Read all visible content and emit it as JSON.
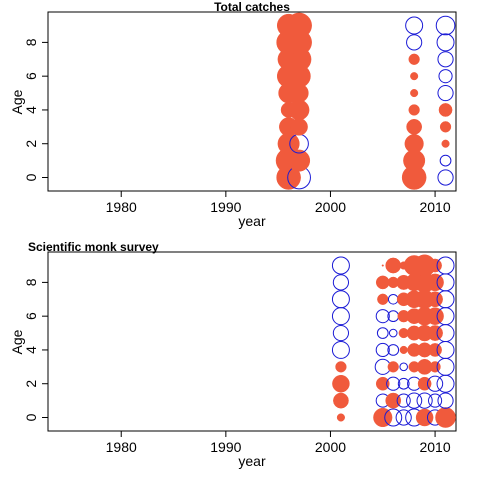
{
  "colors": {
    "positive": "#f05a3c",
    "negative": "#1a1ad6"
  },
  "panels": [
    {
      "title": "Total catches",
      "xlabel": "year",
      "ylabel": "Age"
    },
    {
      "title": "Scientific monk survey",
      "xlabel": "year",
      "ylabel": "Age"
    }
  ],
  "chart_data": [
    {
      "type": "scatter",
      "subtype": "bubble residual plot",
      "title": "Total catches",
      "xlabel": "year",
      "ylabel": "Age",
      "xlim": [
        1973,
        2012
      ],
      "ylim": [
        -0.8,
        9.8
      ],
      "xticks": [
        1980,
        1990,
        2000,
        2010
      ],
      "yticks": [
        0,
        2,
        4,
        6,
        8
      ],
      "grid": false,
      "series": [
        {
          "marker": "filled circle",
          "color": "positive"
        },
        {
          "marker": "open circle",
          "color": "negative"
        }
      ],
      "data": {
        "1996": [
          5.0,
          5.5,
          4.0,
          3.0,
          2.0,
          3.5,
          4.5,
          4.0,
          5.0,
          4.5
        ],
        "1997": [
          -4.5,
          4.0,
          -3.0,
          2.5,
          3.5,
          3.0,
          4.5,
          5.0,
          5.5,
          5.5
        ],
        "2008": [
          5.0,
          4.0,
          3.0,
          2.0,
          1.0,
          0.5,
          0.5,
          1.0,
          -2.0,
          -2.5
        ],
        "2011": [
          -2.0,
          -1.0,
          0.5,
          1.0,
          1.5,
          -2.0,
          -1.5,
          -2.0,
          -2.5,
          -3.0
        ]
      }
    },
    {
      "type": "scatter",
      "subtype": "bubble residual plot",
      "title": "Scientific monk survey",
      "xlabel": "year",
      "ylabel": "Age",
      "xlim": [
        1973,
        2012
      ],
      "ylim": [
        -0.8,
        9.8
      ],
      "xticks": [
        1980,
        1990,
        2000,
        2010
      ],
      "yticks": [
        0,
        2,
        4,
        6,
        8
      ],
      "grid": false,
      "series": [
        {
          "marker": "filled circle",
          "color": "positive"
        },
        {
          "marker": "open circle",
          "color": "negative"
        }
      ],
      "data": {
        "2001": [
          0.5,
          2.0,
          2.5,
          1.0,
          -2.5,
          -2.0,
          -2.5,
          -2.5,
          -2.0,
          -2.5
        ],
        "2005": [
          3.0,
          -1.5,
          1.5,
          -2.0,
          -1.5,
          -1.0,
          -1.5,
          1.0,
          1.5,
          0.0
        ],
        "2006": [
          -2.5,
          2.0,
          -1.5,
          1.0,
          -1.0,
          -0.5,
          -1.0,
          -0.8,
          1.0,
          2.0
        ],
        "2007": [
          -2.0,
          -1.5,
          -1.0,
          -0.5,
          0.5,
          0.8,
          1.2,
          1.5,
          1.8,
          0.5
        ],
        "2008": [
          -2.5,
          -2.0,
          -1.5,
          1.0,
          1.5,
          1.8,
          2.0,
          2.5,
          2.5,
          3.5
        ],
        "2009": [
          2.5,
          -2.0,
          1.5,
          2.0,
          1.8,
          2.2,
          2.8,
          3.0,
          3.5,
          4.0
        ],
        "2010": [
          -2.0,
          -1.5,
          -2.0,
          1.0,
          1.5,
          2.0,
          2.5,
          2.0,
          2.5,
          1.5
        ],
        "2011": [
          3.5,
          -2.0,
          -2.5,
          -2.5,
          -2.5,
          -2.5,
          -2.5,
          -2.5,
          -2.5,
          -2.5
        ]
      }
    }
  ]
}
